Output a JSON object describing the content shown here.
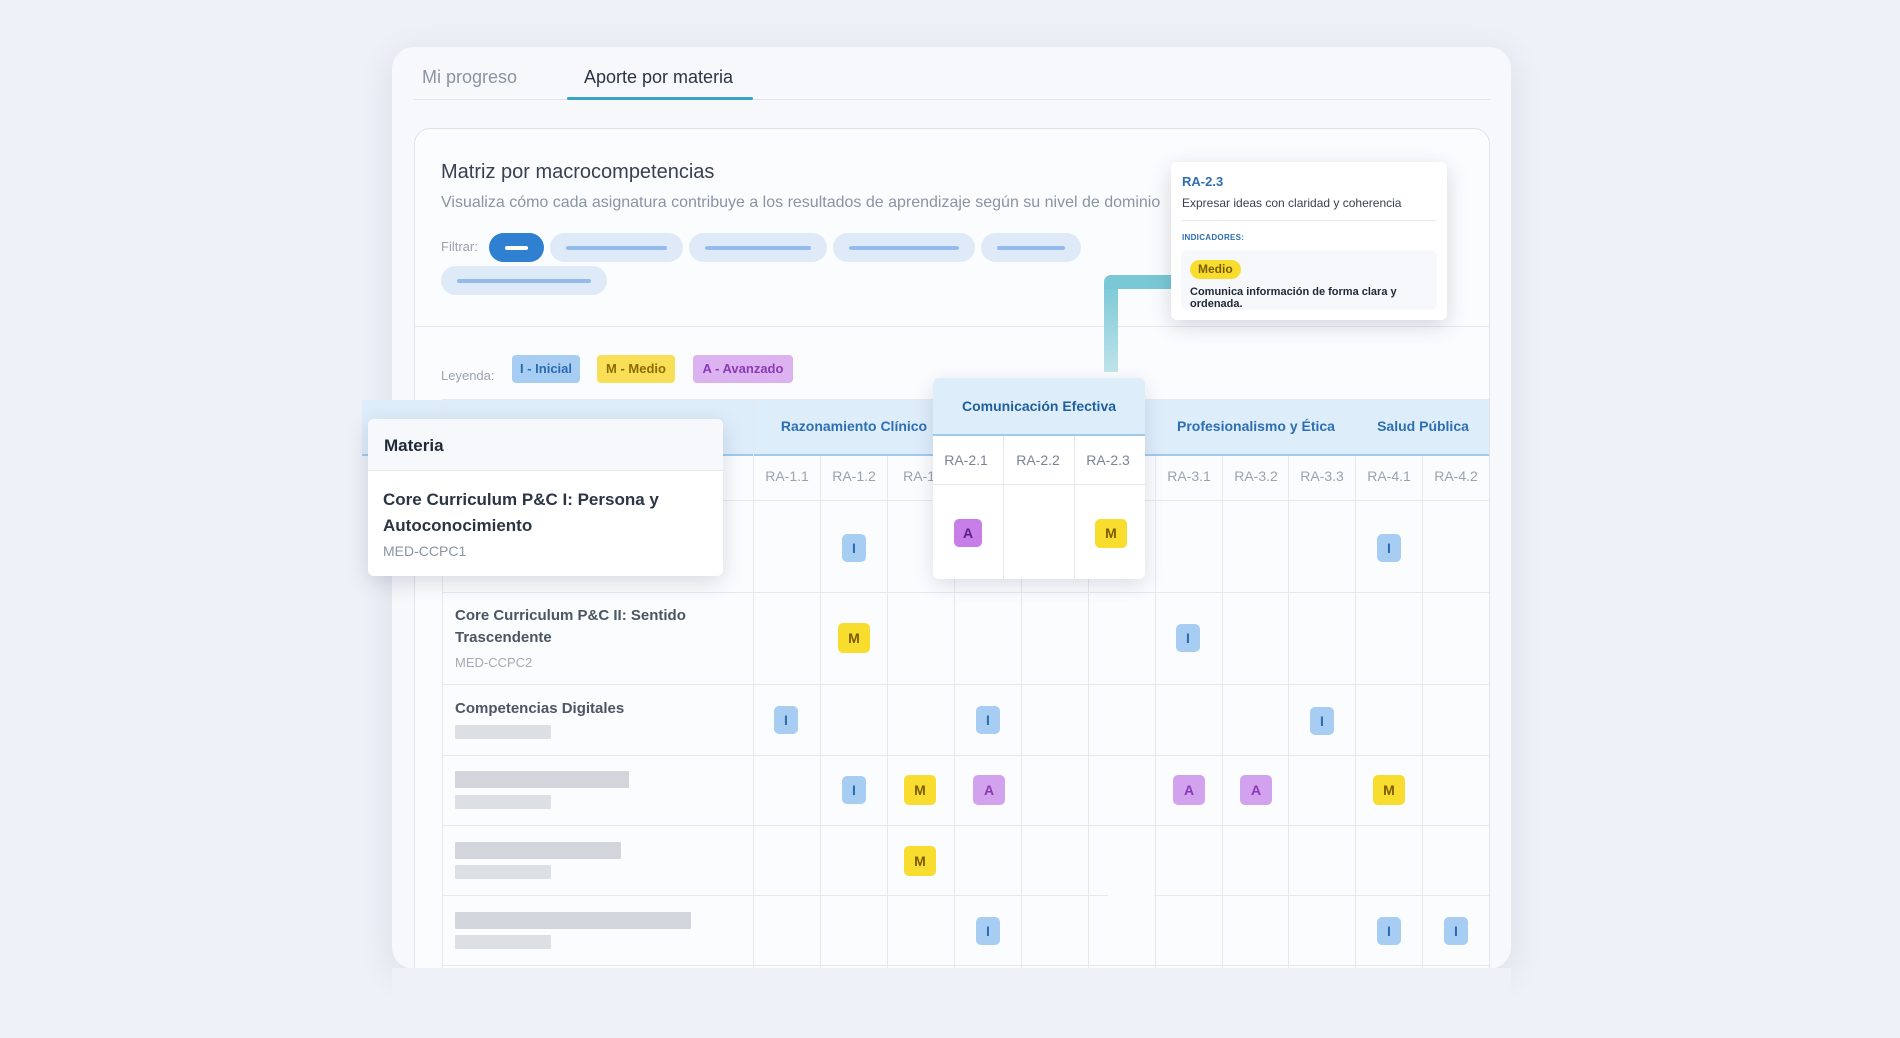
{
  "tabs": [
    {
      "label": "Mi progreso",
      "active": false
    },
    {
      "label": "Aporte por materia",
      "active": true
    }
  ],
  "card": {
    "title": "Matriz por macrocompetencias",
    "subtitle": "Visualiza cómo cada asignatura contribuye a los resultados de aprendizaje según su nivel de dominio",
    "filter_label": "Filtrar:",
    "legend_label": "Leyenda:"
  },
  "legend": {
    "initial": "I - Inicial",
    "medium": "M - Medio",
    "advanced": "A - Avanzado"
  },
  "groups": {
    "g1": "Razonamiento Clínico",
    "g2": "Comunicación Efectiva",
    "g3": "Profesionalismo y Ética",
    "g4": "Salud Pública"
  },
  "columns": {
    "c11": "RA-1.1",
    "c12": "RA-1.2",
    "c13": "RA-1.",
    "c21": "RA-2.1",
    "c22": "RA-2.2",
    "c23": "RA-2.3",
    "c31": "RA-3.1",
    "c32": "RA-3.2",
    "c33": "RA-3.3",
    "c41": "RA-4.1",
    "c42": "RA-4.2"
  },
  "rows": [
    {
      "title": "Core Curriculum P&C I: Persona y Autoconocimiento",
      "code": "MED-CCPC1"
    },
    {
      "title": "Core Curriculum P&C II: Sentido Trascendente",
      "code": "MED-CCPC2"
    },
    {
      "title": "Competencias Digitales",
      "code": ""
    }
  ],
  "levels": {
    "I": "I",
    "M": "M",
    "A": "A"
  },
  "materia_popup": {
    "header": "Materia",
    "title": "Core Curriculum P&C I: Persona y Autoconocimiento",
    "code": "MED-CCPC1"
  },
  "tooltip": {
    "code": "RA-2.3",
    "description": "Expresar ideas con claridad y coherencia",
    "indicators_label": "INDICADORES:",
    "level": "Medio",
    "indicator": "Comunica información de forma clara y ordenada."
  },
  "colors": {
    "accent": "#2f80d1",
    "initial": "#a7cdf3",
    "medium": "#f8dc2e",
    "advanced": "#d2a2ee",
    "tab_underline": "#3aa3c8"
  }
}
